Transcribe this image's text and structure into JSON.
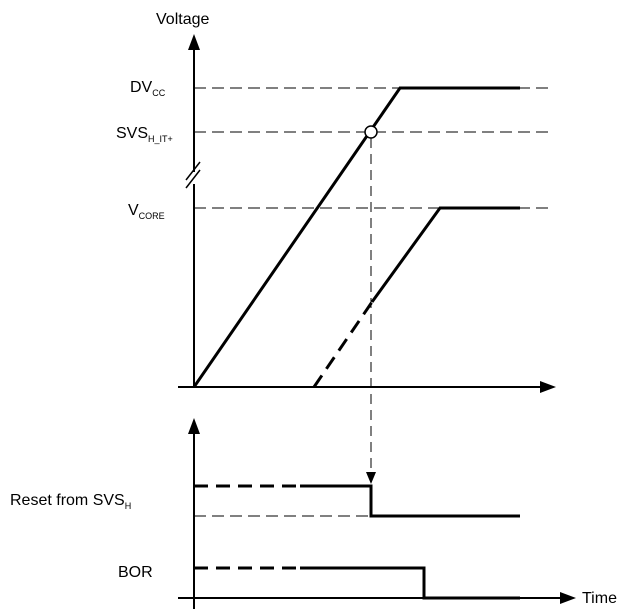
{
  "axes": {
    "voltage_label": "Voltage",
    "time_label": "Time"
  },
  "levels": {
    "dvcc": {
      "main": "DV",
      "sub": "CC"
    },
    "svs": {
      "main": "SVS",
      "sub": "H_IT+"
    },
    "vcore": {
      "main": "V",
      "sub": "CORE"
    }
  },
  "signals": {
    "reset": {
      "main": "Reset from SVS",
      "sub": "H"
    },
    "bor": {
      "main": "BOR"
    }
  }
}
